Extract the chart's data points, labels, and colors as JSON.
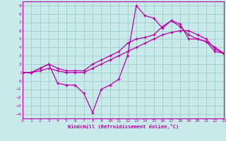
{
  "xlabel": "Windchill (Refroidissement éolien,°C)",
  "bg_color": "#c8eaea",
  "line_color": "#bb00aa",
  "grid_color": "#a0cccc",
  "spine_color": "#bb00aa",
  "x_ticks": [
    0,
    1,
    2,
    3,
    4,
    5,
    6,
    7,
    8,
    9,
    10,
    11,
    12,
    13,
    14,
    15,
    16,
    17,
    18,
    19,
    20,
    21,
    22,
    23
  ],
  "y_ticks": [
    -4,
    -3,
    -2,
    -1,
    0,
    1,
    2,
    3,
    4,
    5,
    6,
    7,
    8,
    9
  ],
  "xlim": [
    0,
    23
  ],
  "ylim": [
    -4.5,
    9.5
  ],
  "series1_x": [
    0,
    1,
    2,
    3,
    4,
    5,
    6,
    7,
    8,
    9,
    10,
    11,
    12,
    13,
    14,
    15,
    16,
    17,
    18,
    19,
    20,
    21,
    22,
    23
  ],
  "series1_y": [
    1.0,
    1.0,
    1.5,
    2.0,
    -0.3,
    -0.5,
    -0.5,
    -1.5,
    -3.8,
    -1.0,
    -0.5,
    0.2,
    3.0,
    9.0,
    7.8,
    7.5,
    6.3,
    7.2,
    6.8,
    5.0,
    5.0,
    4.7,
    3.5,
    3.3
  ],
  "series2_x": [
    0,
    1,
    2,
    3,
    4,
    5,
    6,
    7,
    8,
    9,
    10,
    11,
    12,
    13,
    14,
    15,
    16,
    17,
    18,
    19,
    20,
    21,
    22,
    23
  ],
  "series2_y": [
    1.0,
    1.0,
    1.2,
    1.5,
    1.2,
    1.0,
    1.0,
    1.0,
    1.5,
    2.0,
    2.5,
    3.0,
    3.5,
    4.0,
    4.5,
    5.0,
    5.5,
    5.8,
    6.0,
    6.0,
    5.5,
    5.0,
    3.8,
    3.3
  ],
  "series3_x": [
    0,
    1,
    2,
    3,
    4,
    5,
    6,
    7,
    8,
    9,
    10,
    11,
    12,
    13,
    14,
    15,
    16,
    17,
    18,
    19,
    20,
    21,
    22,
    23
  ],
  "series3_y": [
    1.0,
    1.0,
    1.5,
    2.0,
    1.5,
    1.2,
    1.2,
    1.2,
    2.0,
    2.5,
    3.0,
    3.5,
    4.5,
    5.0,
    5.2,
    5.5,
    6.5,
    7.2,
    6.5,
    5.5,
    5.0,
    4.7,
    4.0,
    3.3
  ]
}
